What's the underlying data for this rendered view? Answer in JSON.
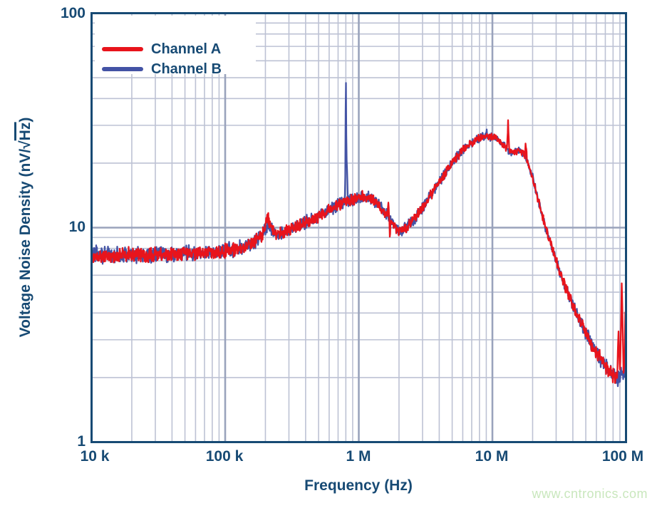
{
  "figure": {
    "watermark": {
      "text": "www.cntronics.com",
      "color": "#c9e7bd"
    }
  },
  "colors": {
    "text": "#174a74",
    "frame": "#174a74",
    "grid_minor": "#bdc2d4",
    "grid_major": "#9aa3bc",
    "background": "#ffffff"
  },
  "chart_data": {
    "type": "line",
    "title": "",
    "xlabel": "Frequency (Hz)",
    "ylabel": "Voltage Noise Density (nV/√Hz)",
    "ylabel_parts": {
      "prefix": "Voltage Noise Density (nV/",
      "sqrt": "√",
      "radicand": "Hz",
      "suffix": ")"
    },
    "x_scale": "log",
    "y_scale": "log",
    "xlim": [
      10000,
      100000000
    ],
    "ylim": [
      1,
      100
    ],
    "x_ticks": [
      {
        "value": 10000,
        "label": "10 k"
      },
      {
        "value": 100000,
        "label": "100 k"
      },
      {
        "value": 1000000,
        "label": "1 M"
      },
      {
        "value": 10000000,
        "label": "10 M"
      },
      {
        "value": 100000000,
        "label": "100 M"
      }
    ],
    "y_ticks": [
      {
        "value": 100,
        "label": "100"
      },
      {
        "value": 10,
        "label": "10"
      },
      {
        "value": 1,
        "label": "1"
      }
    ],
    "grid": "log major and minor gridlines, both axes",
    "legend": {
      "position": "top-left",
      "entries": [
        {
          "label": "Channel A",
          "color": "#e8141c"
        },
        {
          "label": "Channel B",
          "color": "#4353a5"
        }
      ]
    },
    "base_anchors": [
      [
        10000,
        7.4
      ],
      [
        13000,
        7.4
      ],
      [
        20000,
        7.45
      ],
      [
        30000,
        7.5
      ],
      [
        50000,
        7.55
      ],
      [
        70000,
        7.6
      ],
      [
        100000,
        7.8
      ],
      [
        130000,
        8.0
      ],
      [
        160000,
        8.5
      ],
      [
        190000,
        9.3
      ],
      [
        210000,
        10.6
      ],
      [
        235000,
        9.4
      ],
      [
        270000,
        9.5
      ],
      [
        320000,
        9.9
      ],
      [
        400000,
        10.6
      ],
      [
        500000,
        11.3
      ],
      [
        600000,
        12.1
      ],
      [
        750000,
        13.0
      ],
      [
        900000,
        13.6
      ],
      [
        1050000,
        14.0
      ],
      [
        1200000,
        13.9
      ],
      [
        1350000,
        13.2
      ],
      [
        1500000,
        12.2
      ],
      [
        1700000,
        11.0
      ],
      [
        1850000,
        10.2
      ],
      [
        2000000,
        9.6
      ],
      [
        2150000,
        9.7
      ],
      [
        2350000,
        10.2
      ],
      [
        2700000,
        11.3
      ],
      [
        3200000,
        13.2
      ],
      [
        4000000,
        16.3
      ],
      [
        5000000,
        20.0
      ],
      [
        6000000,
        23.0
      ],
      [
        7000000,
        25.0
      ],
      [
        8000000,
        26.2
      ],
      [
        9000000,
        26.8
      ],
      [
        10000000,
        26.5
      ],
      [
        11000000,
        25.8
      ],
      [
        12000000,
        24.5
      ],
      [
        13500000,
        22.5
      ],
      [
        15000000,
        22.8
      ],
      [
        17000000,
        22.5
      ],
      [
        18500000,
        20.0
      ],
      [
        20000000,
        17.0
      ],
      [
        22000000,
        13.5
      ],
      [
        24000000,
        11.0
      ],
      [
        27000000,
        8.6
      ],
      [
        30000000,
        7.0
      ],
      [
        34000000,
        5.6
      ],
      [
        39000000,
        4.5
      ],
      [
        46000000,
        3.6
      ],
      [
        56000000,
        2.8
      ],
      [
        66000000,
        2.4
      ],
      [
        76000000,
        2.1
      ],
      [
        86000000,
        2.0
      ],
      [
        93000000,
        2.1
      ],
      [
        100000000,
        2.35
      ]
    ],
    "series": [
      {
        "name": "Channel A",
        "color": "#e8141c",
        "seed": 20917,
        "noise": [
          [
            10000,
            0.026
          ],
          [
            100000,
            0.024
          ],
          [
            500000,
            0.02
          ],
          [
            2000000,
            0.018
          ],
          [
            6000000,
            0.014
          ],
          [
            15000000,
            0.011
          ],
          [
            30000000,
            0.016
          ],
          [
            60000000,
            0.022
          ],
          [
            100000000,
            0.03
          ]
        ],
        "spikes": [
          [
            205000,
            11.2,
            0.03
          ],
          [
            1660000,
            13.5,
            0.006
          ],
          [
            1710000,
            8.8,
            0.005
          ],
          [
            13100000,
            31,
            0.009
          ],
          [
            17800000,
            24.5,
            0.008
          ],
          [
            88000000,
            3.4,
            0.01
          ],
          [
            93000000,
            5.7,
            0.012
          ],
          [
            99000000,
            4.4,
            0.007
          ]
        ]
      },
      {
        "name": "Channel B",
        "color": "#4353a5",
        "seed": 77031,
        "noise": [
          [
            10000,
            0.031
          ],
          [
            100000,
            0.028
          ],
          [
            500000,
            0.023
          ],
          [
            2000000,
            0.021
          ],
          [
            6000000,
            0.016
          ],
          [
            15000000,
            0.013
          ],
          [
            30000000,
            0.018
          ],
          [
            60000000,
            0.025
          ],
          [
            100000000,
            0.034
          ]
        ],
        "spikes": [
          [
            210000,
            10.3,
            0.025
          ],
          [
            800000,
            37,
            0.0045
          ],
          [
            805000,
            23,
            0.013
          ],
          [
            9000000,
            27.5,
            0.02
          ]
        ]
      }
    ],
    "samples": 1500
  }
}
